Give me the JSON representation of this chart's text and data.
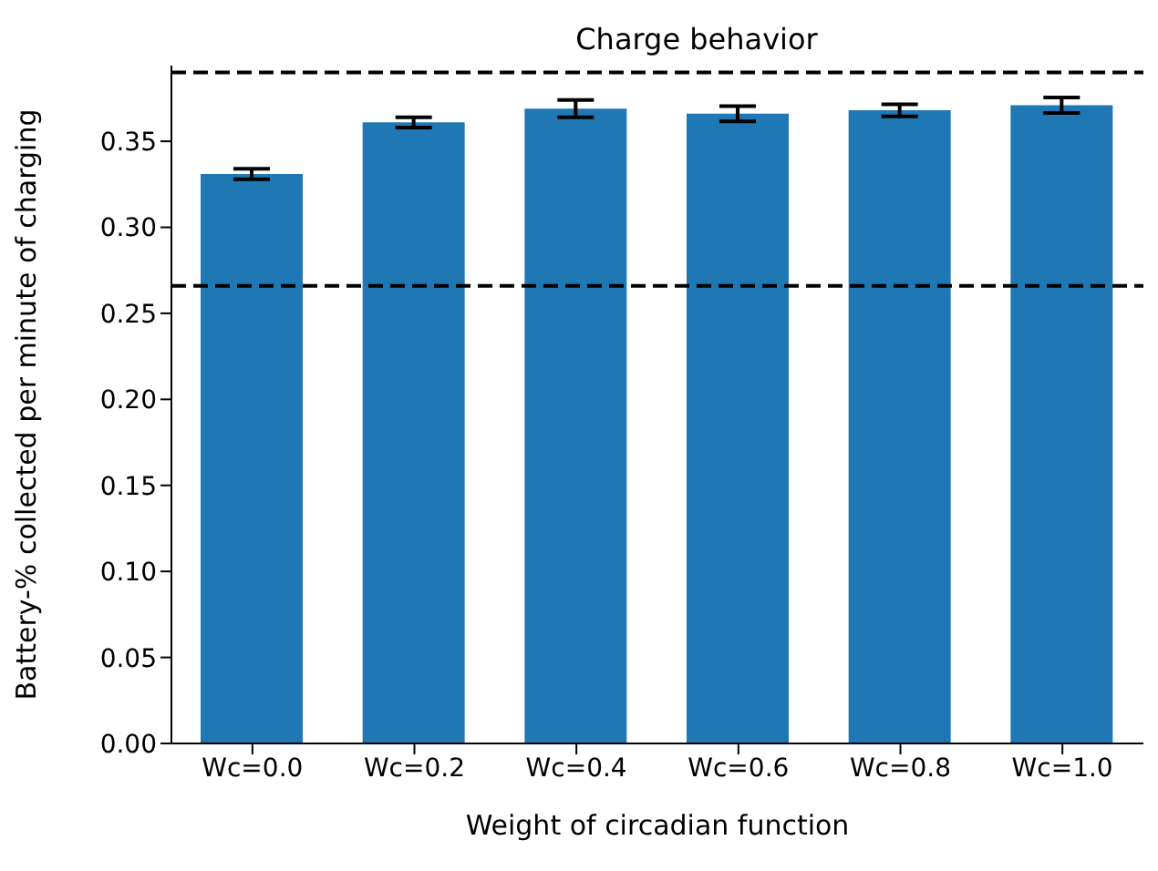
{
  "chart_data": {
    "type": "bar",
    "title": "Charge behavior",
    "xlabel": "Weight of circadian function",
    "ylabel": "Battery-% collected per minute of charging",
    "categories": [
      "Wc=0.0",
      "Wc=0.2",
      "Wc=0.4",
      "Wc=0.6",
      "Wc=0.8",
      "Wc=1.0"
    ],
    "values": [
      0.331,
      0.361,
      0.369,
      0.366,
      0.368,
      0.371
    ],
    "errors": [
      0.003,
      0.003,
      0.005,
      0.0045,
      0.0035,
      0.0045
    ],
    "color": "#1f77b4",
    "ylim": [
      0,
      0.394
    ],
    "yticks": [
      {
        "value": 0,
        "label": "0.00"
      },
      {
        "value": 0.05,
        "label": "0.05"
      },
      {
        "value": 0.1,
        "label": "0.10"
      },
      {
        "value": 0.15,
        "label": "0.15"
      },
      {
        "value": 0.2,
        "label": "0.20"
      },
      {
        "value": 0.25,
        "label": "0.25"
      },
      {
        "value": 0.3,
        "label": "0.30"
      },
      {
        "value": 0.35,
        "label": "0.35"
      }
    ],
    "ref_lines": [
      {
        "axis": "y",
        "value": 0.39,
        "color": "#000000",
        "line_style": "dashed"
      },
      {
        "axis": "y",
        "value": 0.266,
        "color": "#000000",
        "line_style": "dashed"
      }
    ],
    "grid": false,
    "legend": false
  }
}
